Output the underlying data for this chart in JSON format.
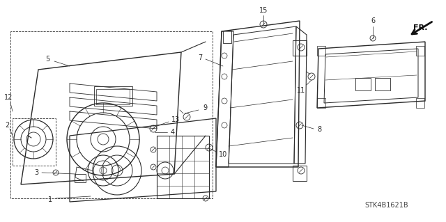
{
  "bg_color": "#ffffff",
  "lc": "#2a2a2a",
  "watermark": "STK4B1621B",
  "fig_w": 6.4,
  "fig_h": 3.19,
  "dpi": 100
}
